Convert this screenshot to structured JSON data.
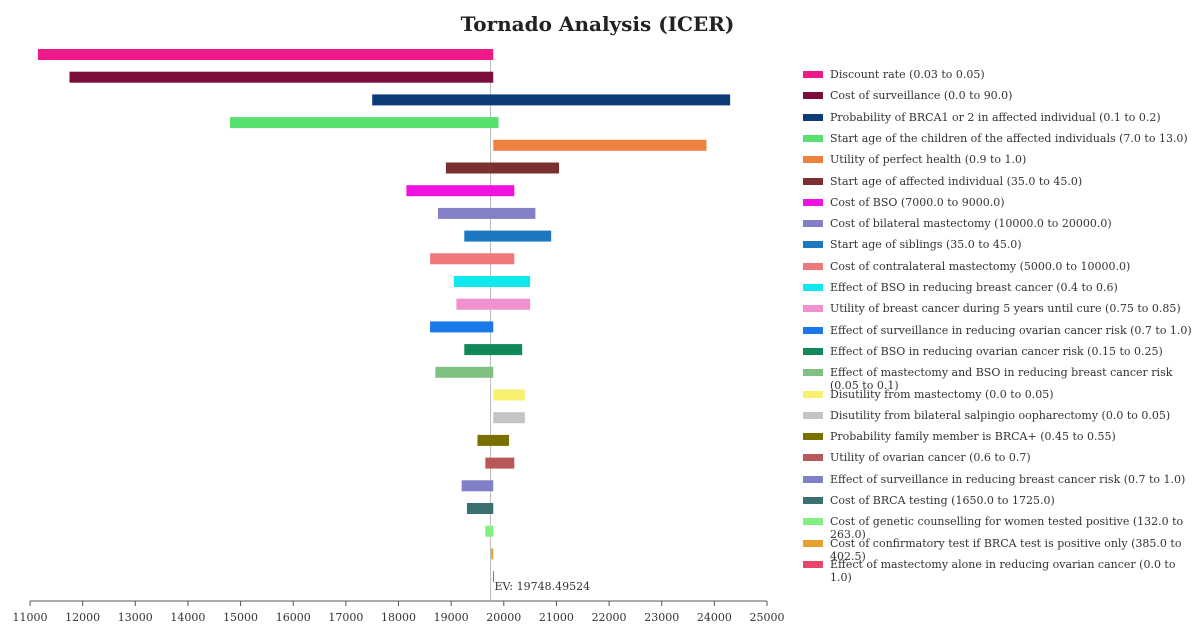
{
  "chart_data": {
    "type": "bar",
    "orientation": "horizontal",
    "title": "Tornado Analysis (ICER)",
    "ev_label": "EV: 19748.49524",
    "ev": 19748.49524,
    "xlim": [
      11000,
      25000
    ],
    "x_ticks": [
      11000,
      12000,
      13000,
      14000,
      15000,
      16000,
      17000,
      18000,
      19000,
      20000,
      21000,
      22000,
      23000,
      24000,
      25000
    ],
    "legend_position": "right",
    "bars": [
      {
        "label": "Discount rate (0.03 to 0.05)",
        "low": 11150,
        "high": 19800,
        "color": "#ee1a8a"
      },
      {
        "label": "Cost of surveillance (0.0 to 90.0)",
        "low": 11750,
        "high": 19800,
        "color": "#7b0f3c"
      },
      {
        "label": "Probability of BRCA1 or 2 in affected individual (0.1 to 0.2)",
        "low": 17500,
        "high": 24300,
        "color": "#0d3c78"
      },
      {
        "label": "Start age of the children of the affected individuals (7.0 to 13.0)",
        "low": 14800,
        "high": 19900,
        "color": "#55e070"
      },
      {
        "label": "Utility of perfect health (0.9 to 1.0)",
        "low": 19800,
        "high": 23850,
        "color": "#f08040"
      },
      {
        "label": "Start age of affected individual (35.0 to 45.0)",
        "low": 18900,
        "high": 21050,
        "color": "#7a3030"
      },
      {
        "label": "Cost of BSO (7000.0 to 9000.0)",
        "low": 18150,
        "high": 20200,
        "color": "#f012e0"
      },
      {
        "label": "Cost of bilateral mastectomy (10000.0 to 20000.0)",
        "low": 18750,
        "high": 20600,
        "color": "#8480c8"
      },
      {
        "label": "Start age of siblings (35.0 to 45.0)",
        "low": 19250,
        "high": 20900,
        "color": "#1c78c0"
      },
      {
        "label": "Cost of contralateral mastectomy (5000.0 to 10000.0)",
        "low": 18600,
        "high": 20200,
        "color": "#f07878"
      },
      {
        "label": "Effect of BSO in reducing breast cancer (0.4 to 0.6)",
        "low": 19050,
        "high": 20500,
        "color": "#10e8f0"
      },
      {
        "label": "Utility of breast cancer during 5 years until cure (0.75 to 0.85)",
        "low": 19100,
        "high": 20500,
        "color": "#f090d0"
      },
      {
        "label": "Effect of surveillance in reducing ovarian cancer risk (0.7 to 1.0)",
        "low": 18600,
        "high": 19800,
        "color": "#1a78e8"
      },
      {
        "label": "Effect of BSO in reducing ovarian cancer risk (0.15 to 0.25)",
        "low": 19250,
        "high": 20350,
        "color": "#108858"
      },
      {
        "label": "Effect of mastectomy and BSO in reducing breast cancer risk (0.05 to 0.1)",
        "low": 18700,
        "high": 19800,
        "color": "#80c080"
      },
      {
        "label": "Disutility from mastectomy (0.0 to 0.05)",
        "low": 19800,
        "high": 20400,
        "color": "#f8f070"
      },
      {
        "label": "Disutility from bilateral salpingio oopharectomy (0.0 to 0.05)",
        "low": 19800,
        "high": 20400,
        "color": "#c4c4c4"
      },
      {
        "label": "Probability family member is BRCA+ (0.45 to 0.55)",
        "low": 19500,
        "high": 20100,
        "color": "#7a7000"
      },
      {
        "label": "Utility of ovarian cancer (0.6 to 0.7)",
        "low": 19650,
        "high": 20200,
        "color": "#b85858"
      },
      {
        "label": "Effect of surveillance in reducing breast cancer risk (0.7 to 1.0)",
        "low": 19200,
        "high": 19800,
        "color": "#8080c8"
      },
      {
        "label": "Cost of BRCA testing (1650.0 to 1725.0)",
        "low": 19300,
        "high": 19800,
        "color": "#3a7070"
      },
      {
        "label": "Cost of genetic counselling for women tested positive (132.0 to 263.0)",
        "low": 19650,
        "high": 19800,
        "color": "#80f080"
      },
      {
        "label": "Cost of confirmatory test if BRCA test is positive only (385.0 to 402.5)",
        "low": 19760,
        "high": 19800,
        "color": "#e8a030"
      },
      {
        "label": "Effect of mastectomy alone in reducing ovarian cancer (0.0 to 1.0)",
        "low": 19795,
        "high": 19805,
        "color": "#e84868"
      }
    ]
  }
}
